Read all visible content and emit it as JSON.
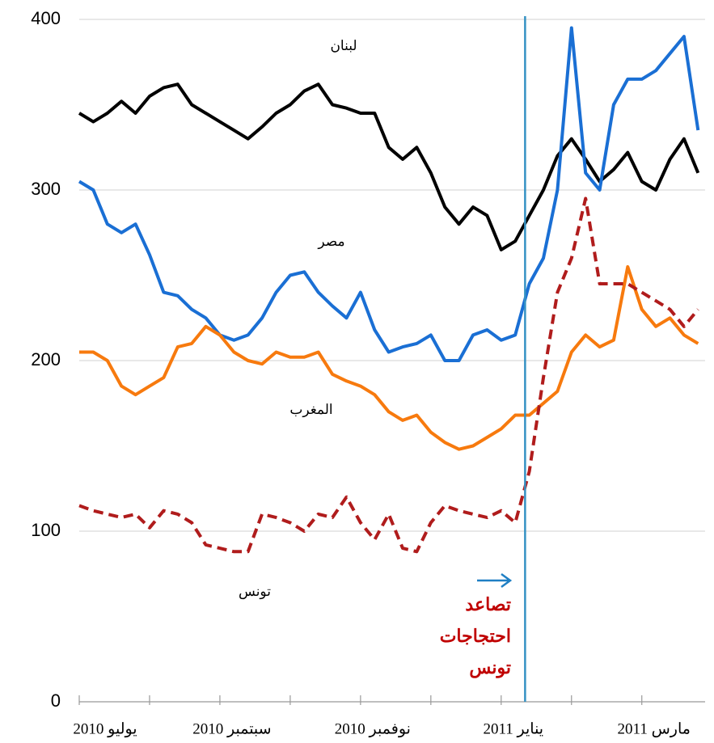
{
  "chart_data": {
    "type": "line",
    "x": [
      0,
      0.2,
      0.4,
      0.6,
      0.8,
      1,
      1.2,
      1.4,
      1.6,
      1.8,
      2,
      2.2,
      2.4,
      2.6,
      2.8,
      3,
      3.2,
      3.4,
      3.6,
      3.8,
      4,
      4.2,
      4.4,
      4.6,
      4.8,
      5,
      5.2,
      5.4,
      5.6,
      5.8,
      6,
      6.2,
      6.4,
      6.6,
      6.8,
      7,
      7.2,
      7.4,
      7.6,
      7.8,
      8,
      8.2,
      8.4,
      8.6,
      8.8
    ],
    "series": [
      {
        "name": "لبنان",
        "color": "#000000",
        "dash": false,
        "values": [
          345,
          340,
          345,
          352,
          345,
          355,
          360,
          362,
          350,
          345,
          340,
          335,
          330,
          337,
          345,
          350,
          358,
          362,
          350,
          348,
          345,
          345,
          325,
          318,
          325,
          310,
          290,
          280,
          290,
          285,
          265,
          270,
          285,
          300,
          320,
          330,
          318,
          305,
          312,
          322,
          305,
          300,
          318,
          330,
          310
        ]
      },
      {
        "name": "مصر",
        "color": "#1a6fd4",
        "dash": false,
        "values": [
          305,
          300,
          280,
          275,
          280,
          262,
          240,
          238,
          230,
          225,
          215,
          212,
          215,
          225,
          240,
          250,
          252,
          240,
          232,
          225,
          240,
          218,
          205,
          208,
          210,
          215,
          200,
          200,
          215,
          218,
          212,
          215,
          245,
          260,
          300,
          395,
          310,
          300,
          350,
          365,
          365,
          370,
          380,
          390,
          335
        ]
      },
      {
        "name": "المغرب",
        "color": "#f77a0e",
        "dash": false,
        "values": [
          205,
          205,
          200,
          185,
          180,
          185,
          190,
          208,
          210,
          220,
          215,
          205,
          200,
          198,
          205,
          202,
          202,
          205,
          192,
          188,
          185,
          180,
          170,
          165,
          168,
          158,
          152,
          148,
          150,
          155,
          160,
          168,
          168,
          175,
          182,
          205,
          215,
          208,
          212,
          255,
          230,
          220,
          225,
          215,
          210
        ]
      },
      {
        "name": "تونس",
        "color": "#b01c1c",
        "dash": true,
        "values": [
          115,
          112,
          110,
          108,
          110,
          102,
          112,
          110,
          105,
          92,
          90,
          88,
          88,
          110,
          108,
          105,
          100,
          110,
          108,
          120,
          105,
          95,
          110,
          90,
          88,
          105,
          115,
          112,
          110,
          108,
          112,
          105,
          135,
          190,
          240,
          260,
          295,
          245,
          245,
          245,
          240,
          235,
          230,
          220,
          230
        ]
      }
    ],
    "ylim": [
      0,
      400
    ],
    "yticks": [
      0,
      100,
      200,
      300,
      400
    ],
    "grid": true,
    "xlim": [
      0,
      8.9
    ],
    "xtick_marks": [
      0,
      1,
      2,
      3,
      4,
      5,
      6,
      7,
      8
    ],
    "xticks": [
      {
        "value": 0,
        "label": "يوليو 2010"
      },
      {
        "value": 2,
        "label": "سبتمبر 2010"
      },
      {
        "value": 4,
        "label": "نوفمبر 2010"
      },
      {
        "value": 6,
        "label": "يناير 2011"
      },
      {
        "value": 8,
        "label": "مارس 2011"
      }
    ],
    "annotation": {
      "x": 6.34,
      "color": "#3592c4",
      "lines": [
        "تصاعد",
        "احتجاجات",
        "تونس"
      ]
    }
  }
}
